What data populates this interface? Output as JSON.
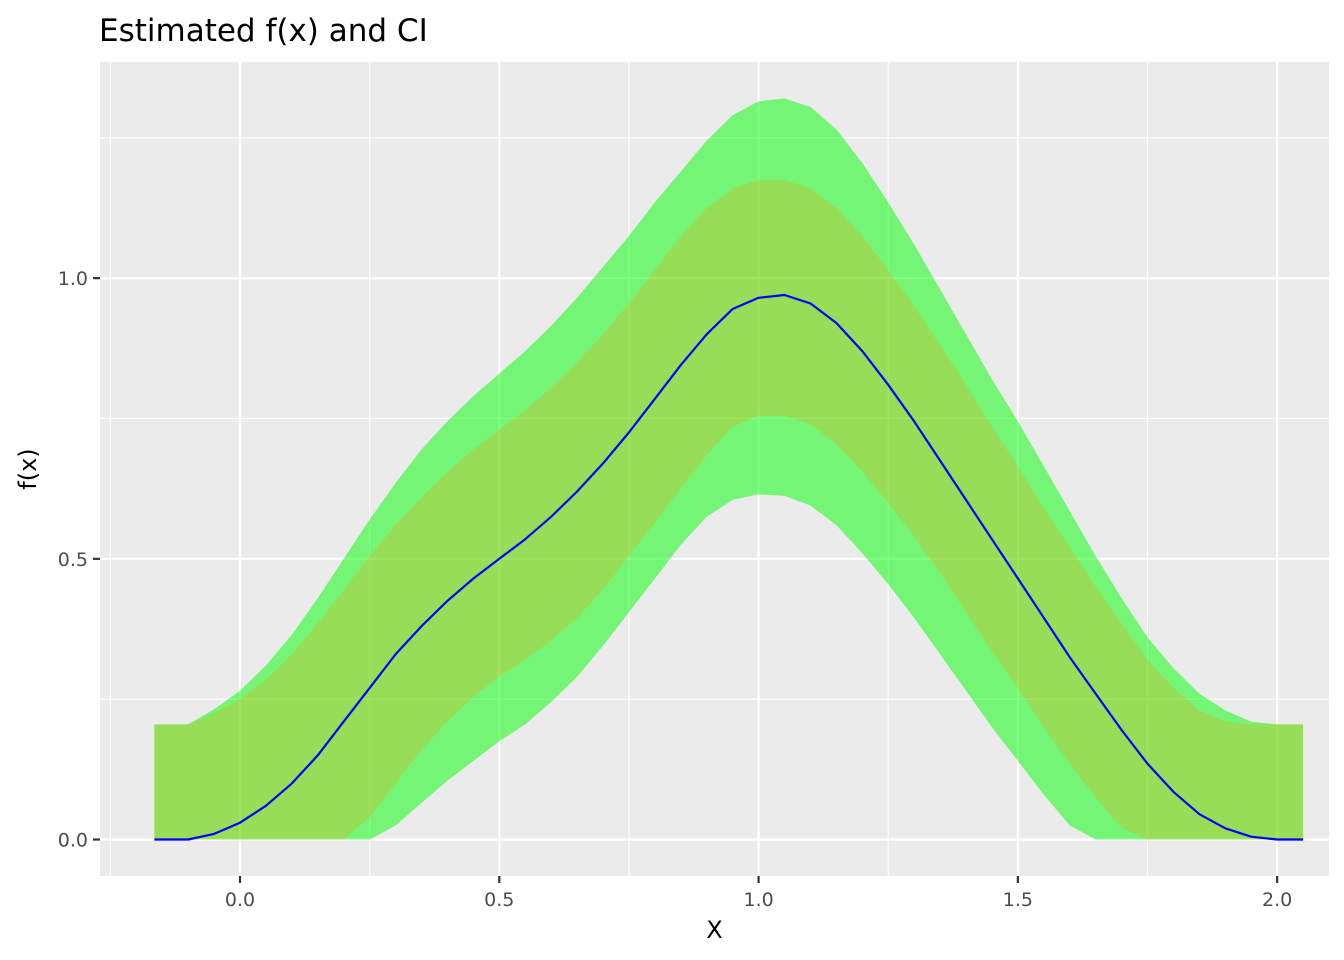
{
  "chart_data": {
    "type": "area",
    "title": "Estimated f(x) and CI",
    "xlabel": "X",
    "ylabel": "f(x)",
    "xlim": [
      -0.27,
      2.1
    ],
    "ylim": [
      -0.065,
      1.385
    ],
    "xticks": [
      0.0,
      0.5,
      1.0,
      1.5,
      2.0
    ],
    "xtick_labels": [
      "0.0",
      "0.5",
      "1.0",
      "1.5",
      "2.0"
    ],
    "yticks": [
      0.0,
      0.5,
      1.0
    ],
    "ytick_labels": [
      "0.0",
      "0.5",
      "1.0"
    ],
    "grid": true,
    "legend": "none",
    "x": [
      -0.165,
      -0.1,
      -0.05,
      0.0,
      0.05,
      0.1,
      0.15,
      0.2,
      0.25,
      0.3,
      0.35,
      0.4,
      0.45,
      0.5,
      0.55,
      0.6,
      0.65,
      0.7,
      0.75,
      0.8,
      0.85,
      0.9,
      0.95,
      1.0,
      1.05,
      1.1,
      1.15,
      1.2,
      1.25,
      1.3,
      1.35,
      1.4,
      1.45,
      1.5,
      1.55,
      1.6,
      1.65,
      1.7,
      1.75,
      1.8,
      1.85,
      1.9,
      1.95,
      2.0,
      2.05
    ],
    "series": [
      {
        "role": "outer_band",
        "color": "#00ff00",
        "opacity": 0.5,
        "upper": [
          0.205,
          0.205,
          0.232,
          0.265,
          0.31,
          0.365,
          0.43,
          0.5,
          0.57,
          0.635,
          0.695,
          0.745,
          0.79,
          0.83,
          0.87,
          0.915,
          0.965,
          1.02,
          1.075,
          1.135,
          1.19,
          1.245,
          1.29,
          1.315,
          1.32,
          1.305,
          1.265,
          1.205,
          1.135,
          1.06,
          0.98,
          0.9,
          0.82,
          0.745,
          0.665,
          0.585,
          0.505,
          0.43,
          0.36,
          0.305,
          0.26,
          0.23,
          0.21,
          0.205,
          0.205
        ],
        "lower": [
          0.0,
          0.0,
          0.0,
          0.0,
          0.0,
          0.0,
          0.0,
          0.0,
          0.0,
          0.025,
          0.065,
          0.105,
          0.14,
          0.175,
          0.205,
          0.245,
          0.29,
          0.345,
          0.405,
          0.465,
          0.525,
          0.575,
          0.605,
          0.615,
          0.612,
          0.595,
          0.56,
          0.51,
          0.455,
          0.395,
          0.33,
          0.265,
          0.2,
          0.14,
          0.08,
          0.025,
          0.0,
          0.0,
          0.0,
          0.0,
          0.0,
          0.0,
          0.0,
          0.0,
          0.0
        ]
      },
      {
        "role": "inner_band",
        "color": "#ff9900",
        "opacity": 0.25,
        "upper": [
          0.205,
          0.205,
          0.225,
          0.25,
          0.285,
          0.33,
          0.385,
          0.445,
          0.505,
          0.56,
          0.61,
          0.655,
          0.695,
          0.73,
          0.765,
          0.805,
          0.85,
          0.9,
          0.955,
          1.015,
          1.075,
          1.125,
          1.16,
          1.175,
          1.175,
          1.16,
          1.125,
          1.075,
          1.015,
          0.95,
          0.88,
          0.81,
          0.735,
          0.665,
          0.59,
          0.52,
          0.45,
          0.385,
          0.32,
          0.27,
          0.23,
          0.21,
          0.205,
          0.205,
          0.205
        ],
        "lower": [
          0.0,
          0.0,
          0.0,
          0.0,
          0.0,
          0.0,
          0.0,
          0.0,
          0.04,
          0.1,
          0.16,
          0.21,
          0.255,
          0.29,
          0.32,
          0.355,
          0.395,
          0.445,
          0.505,
          0.565,
          0.625,
          0.685,
          0.735,
          0.755,
          0.755,
          0.74,
          0.705,
          0.655,
          0.6,
          0.54,
          0.475,
          0.405,
          0.335,
          0.27,
          0.2,
          0.135,
          0.075,
          0.02,
          0.0,
          0.0,
          0.0,
          0.0,
          0.0,
          0.0,
          0.0
        ]
      },
      {
        "role": "estimate_line",
        "color": "#0000ff",
        "values": [
          0.0,
          0.0,
          0.01,
          0.03,
          0.06,
          0.1,
          0.15,
          0.21,
          0.27,
          0.33,
          0.38,
          0.425,
          0.465,
          0.5,
          0.535,
          0.575,
          0.62,
          0.67,
          0.725,
          0.785,
          0.845,
          0.9,
          0.945,
          0.965,
          0.97,
          0.955,
          0.92,
          0.87,
          0.81,
          0.745,
          0.675,
          0.605,
          0.535,
          0.465,
          0.395,
          0.325,
          0.26,
          0.195,
          0.135,
          0.085,
          0.045,
          0.02,
          0.005,
          0.0,
          0.0
        ]
      }
    ]
  }
}
